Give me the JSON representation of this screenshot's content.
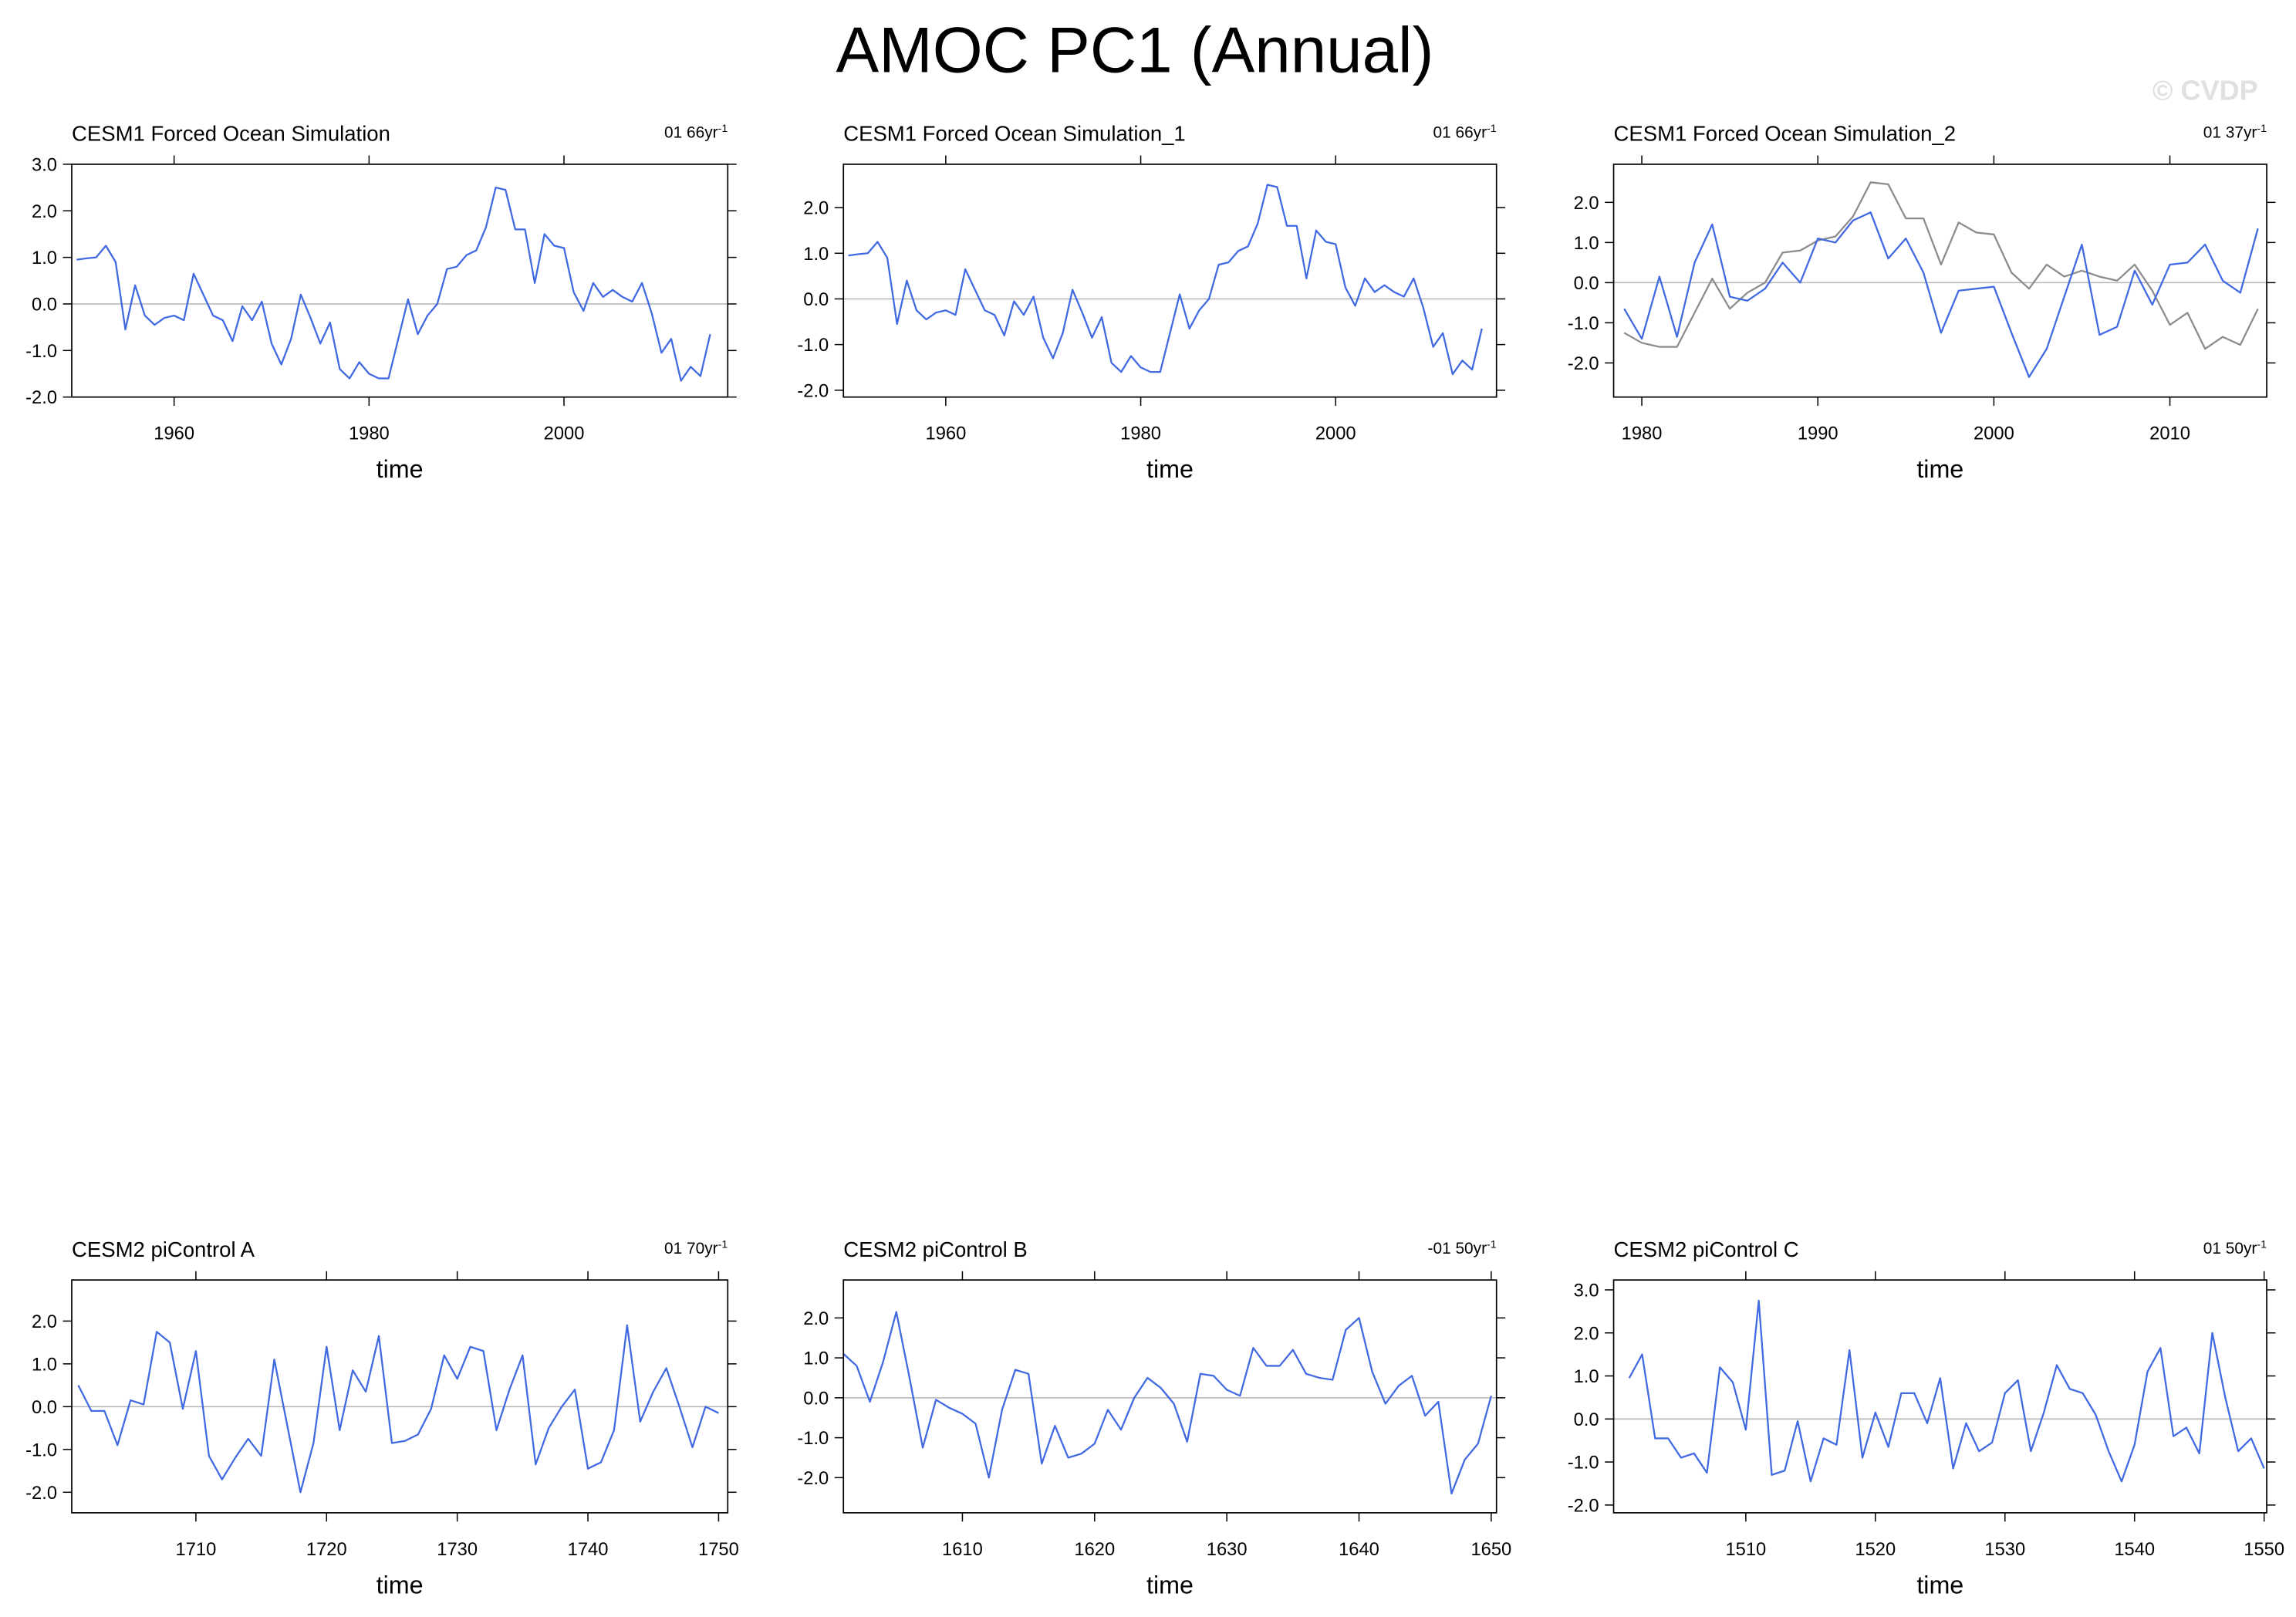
{
  "title": "AMOC PC1 (Annual)",
  "watermark": "© CVDP",
  "chart_data": [
    {
      "type": "line",
      "title": "CESM1 Forced Ocean Simulation",
      "trend_label": "01 66yr",
      "trend_exponent": "-1",
      "xlabel": "time",
      "x": [
        1950,
        1951,
        1952,
        1953,
        1954,
        1955,
        1956,
        1957,
        1958,
        1959,
        1960,
        1961,
        1962,
        1963,
        1964,
        1965,
        1966,
        1967,
        1968,
        1969,
        1970,
        1971,
        1972,
        1973,
        1974,
        1975,
        1976,
        1977,
        1978,
        1979,
        1980,
        1981,
        1982,
        1983,
        1984,
        1985,
        1986,
        1987,
        1988,
        1989,
        1990,
        1991,
        1992,
        1993,
        1994,
        1995,
        1996,
        1997,
        1998,
        1999,
        2000,
        2001,
        2002,
        2003,
        2004,
        2005,
        2006,
        2007,
        2008,
        2009,
        2010,
        2011,
        2012,
        2013,
        2014,
        2015
      ],
      "series": [
        {
          "color": "#4169e1",
          "values": [
            0.95,
            0.98,
            1.0,
            1.25,
            0.9,
            -0.55,
            0.4,
            -0.25,
            -0.45,
            -0.3,
            -0.25,
            -0.35,
            0.65,
            0.2,
            -0.25,
            -0.35,
            -0.8,
            -0.05,
            -0.35,
            0.05,
            -0.85,
            -1.3,
            -0.75,
            0.2,
            -0.3,
            -0.85,
            -0.4,
            -1.4,
            -1.6,
            -1.25,
            -1.5,
            -1.6,
            -1.6,
            -0.75,
            0.1,
            -0.65,
            -0.25,
            0.0,
            0.75,
            0.8,
            1.05,
            1.15,
            1.65,
            2.5,
            2.45,
            1.6,
            1.6,
            0.45,
            1.5,
            1.25,
            1.2,
            0.25,
            -0.15,
            0.45,
            0.15,
            0.3,
            0.15,
            0.05,
            0.45,
            -0.2,
            -1.05,
            -0.75,
            -1.65,
            -1.35,
            -1.55,
            -0.65
          ]
        }
      ],
      "xlim": [
        1949.5,
        2016.8
      ],
      "ylim": [
        -2,
        3
      ],
      "xticks": [
        1960,
        1980,
        2000
      ],
      "yticks": [
        {
          "value": -2,
          "label": "-2.0"
        },
        {
          "value": -1,
          "label": "-1.0"
        },
        {
          "value": 0,
          "label": "0.0"
        },
        {
          "value": 1,
          "label": "1.0"
        },
        {
          "value": 2,
          "label": "2.0"
        },
        {
          "value": 3,
          "label": "3.0"
        }
      ],
      "zero_line": true
    },
    {
      "type": "line",
      "title": "CESM1 Forced Ocean Simulation_1",
      "trend_label": "01 66yr",
      "trend_exponent": "-1",
      "xlabel": "time",
      "x": [
        1950,
        1951,
        1952,
        1953,
        1954,
        1955,
        1956,
        1957,
        1958,
        1959,
        1960,
        1961,
        1962,
        1963,
        1964,
        1965,
        1966,
        1967,
        1968,
        1969,
        1970,
        1971,
        1972,
        1973,
        1974,
        1975,
        1976,
        1977,
        1978,
        1979,
        1980,
        1981,
        1982,
        1983,
        1984,
        1985,
        1986,
        1987,
        1988,
        1989,
        1990,
        1991,
        1992,
        1993,
        1994,
        1995,
        1996,
        1997,
        1998,
        1999,
        2000,
        2001,
        2002,
        2003,
        2004,
        2005,
        2006,
        2007,
        2008,
        2009,
        2010,
        2011,
        2012,
        2013,
        2014,
        2015
      ],
      "series": [
        {
          "color": "#4169e1",
          "values": [
            0.95,
            0.98,
            1.0,
            1.25,
            0.9,
            -0.55,
            0.4,
            -0.25,
            -0.45,
            -0.3,
            -0.25,
            -0.35,
            0.65,
            0.2,
            -0.25,
            -0.35,
            -0.8,
            -0.05,
            -0.35,
            0.05,
            -0.85,
            -1.3,
            -0.75,
            0.2,
            -0.3,
            -0.85,
            -0.4,
            -1.4,
            -1.6,
            -1.25,
            -1.5,
            -1.6,
            -1.6,
            -0.75,
            0.1,
            -0.65,
            -0.25,
            0.0,
            0.75,
            0.8,
            1.05,
            1.15,
            1.65,
            2.5,
            2.45,
            1.6,
            1.6,
            0.45,
            1.5,
            1.25,
            1.2,
            0.25,
            -0.15,
            0.45,
            0.15,
            0.3,
            0.15,
            0.05,
            0.45,
            -0.2,
            -1.05,
            -0.75,
            -1.65,
            -1.35,
            -1.55,
            -0.65
          ]
        }
      ],
      "xlim": [
        1949.5,
        2016.5
      ],
      "ylim": [
        -2.15,
        2.95
      ],
      "xticks": [
        1960,
        1980,
        2000
      ],
      "yticks": [
        {
          "value": -2,
          "label": "-2.0"
        },
        {
          "value": -1,
          "label": "-1.0"
        },
        {
          "value": 0,
          "label": "0.0"
        },
        {
          "value": 1,
          "label": "1.0"
        },
        {
          "value": 2,
          "label": "2.0"
        }
      ],
      "zero_line": true
    },
    {
      "type": "line",
      "title": "CESM1 Forced Ocean Simulation_2",
      "trend_label": "01 37yr",
      "trend_exponent": "-1",
      "xlabel": "time",
      "x": [
        1979,
        1980,
        1981,
        1982,
        1983,
        1984,
        1985,
        1986,
        1987,
        1988,
        1989,
        1990,
        1991,
        1992,
        1993,
        1994,
        1995,
        1996,
        1997,
        1998,
        1999,
        2000,
        2001,
        2002,
        2003,
        2004,
        2005,
        2006,
        2007,
        2008,
        2009,
        2010,
        2011,
        2012,
        2013,
        2014,
        2015
      ],
      "series": [
        {
          "color": "#8c8c8c",
          "values": [
            -1.25,
            -1.5,
            -1.6,
            -1.6,
            -0.75,
            0.1,
            -0.65,
            -0.25,
            0.0,
            0.75,
            0.8,
            1.05,
            1.15,
            1.65,
            2.5,
            2.45,
            1.6,
            1.6,
            0.45,
            1.5,
            1.25,
            1.2,
            0.25,
            -0.15,
            0.45,
            0.15,
            0.3,
            0.15,
            0.05,
            0.45,
            -0.2,
            -1.05,
            -0.75,
            -1.65,
            -1.35,
            -1.55,
            -0.65
          ]
        },
        {
          "color": "#4169e1",
          "values": [
            -0.65,
            -1.4,
            0.15,
            -1.35,
            0.5,
            1.45,
            -0.35,
            -0.45,
            -0.15,
            0.5,
            0.0,
            1.1,
            1.0,
            1.55,
            1.75,
            0.6,
            1.1,
            0.25,
            -1.25,
            -0.2,
            -0.15,
            -0.1,
            -1.25,
            -2.35,
            -1.65,
            -0.35,
            0.95,
            -1.3,
            -1.1,
            0.3,
            -0.55,
            0.45,
            0.5,
            0.95,
            0.05,
            -0.25,
            1.35
          ]
        }
      ],
      "xlim": [
        1978.4,
        2015.5
      ],
      "ylim": [
        -2.85,
        2.95
      ],
      "xticks": [
        1980,
        1990,
        2000,
        2010
      ],
      "yticks": [
        {
          "value": -2,
          "label": "-2.0"
        },
        {
          "value": -1,
          "label": "-1.0"
        },
        {
          "value": 0,
          "label": "0.0"
        },
        {
          "value": 1,
          "label": "1.0"
        },
        {
          "value": 2,
          "label": "2.0"
        }
      ],
      "zero_line": true
    },
    {
      "type": "line",
      "title": "CESM2 piControl A",
      "trend_label": "01 70yr",
      "trend_exponent": "-1",
      "xlabel": "time",
      "x": [
        1701,
        1702,
        1703,
        1704,
        1705,
        1706,
        1707,
        1708,
        1709,
        1710,
        1711,
        1712,
        1713,
        1714,
        1715,
        1716,
        1717,
        1718,
        1719,
        1720,
        1721,
        1722,
        1723,
        1724,
        1725,
        1726,
        1727,
        1728,
        1729,
        1730,
        1731,
        1732,
        1733,
        1734,
        1735,
        1736,
        1737,
        1738,
        1739,
        1740,
        1741,
        1742,
        1743,
        1744,
        1745,
        1746,
        1747,
        1748,
        1749,
        1750
      ],
      "series": [
        {
          "color": "#4169e1",
          "values": [
            0.5,
            -0.1,
            -0.1,
            -0.9,
            0.15,
            0.05,
            1.75,
            1.5,
            -0.05,
            1.3,
            -1.15,
            -1.7,
            -1.2,
            -0.75,
            -1.15,
            1.1,
            -0.45,
            -2.0,
            -0.85,
            1.4,
            -0.55,
            0.85,
            0.35,
            1.65,
            -0.85,
            -0.8,
            -0.65,
            -0.05,
            1.2,
            0.65,
            1.4,
            1.3,
            -0.55,
            0.4,
            1.2,
            -1.35,
            -0.5,
            0.0,
            0.4,
            -1.45,
            -1.3,
            -0.55,
            1.9,
            -0.35,
            0.35,
            0.9,
            0.0,
            -0.95,
            0.0,
            -0.15
          ]
        }
      ],
      "xlim": [
        1700.5,
        1750.7
      ],
      "ylim": [
        -2.48,
        2.96
      ],
      "xticks": [
        1710,
        1720,
        1730,
        1740,
        1750
      ],
      "yticks": [
        {
          "value": -2,
          "label": "-2.0"
        },
        {
          "value": -1,
          "label": "-1.0"
        },
        {
          "value": 0,
          "label": "0.0"
        },
        {
          "value": 1,
          "label": "1.0"
        },
        {
          "value": 2,
          "label": "2.0"
        }
      ],
      "zero_line": true
    },
    {
      "type": "line",
      "title": "CESM2 piControl B",
      "trend_label": "-01 50yr",
      "trend_exponent": "-1",
      "xlabel": "time",
      "x": [
        1601,
        1602,
        1603,
        1604,
        1605,
        1606,
        1607,
        1608,
        1609,
        1610,
        1611,
        1612,
        1613,
        1614,
        1615,
        1616,
        1617,
        1618,
        1619,
        1620,
        1621,
        1622,
        1623,
        1624,
        1625,
        1626,
        1627,
        1628,
        1629,
        1630,
        1631,
        1632,
        1633,
        1634,
        1635,
        1636,
        1637,
        1638,
        1639,
        1640,
        1641,
        1642,
        1643,
        1644,
        1645,
        1646,
        1647,
        1648,
        1649,
        1650
      ],
      "series": [
        {
          "color": "#4169e1",
          "values": [
            1.1,
            0.8,
            -0.1,
            0.9,
            2.15,
            0.5,
            -1.25,
            -0.05,
            -0.25,
            -0.4,
            -0.65,
            -2.0,
            -0.3,
            0.7,
            0.6,
            -1.65,
            -0.7,
            -1.5,
            -1.4,
            -1.15,
            -0.3,
            -0.8,
            0.0,
            0.5,
            0.25,
            -0.15,
            -1.1,
            0.6,
            0.55,
            0.2,
            0.05,
            1.25,
            0.8,
            0.8,
            1.2,
            0.6,
            0.5,
            0.45,
            1.7,
            2.0,
            0.65,
            -0.15,
            0.3,
            0.55,
            -0.45,
            -0.1,
            -2.4,
            -1.55,
            -1.15,
            0.05
          ]
        }
      ],
      "xlim": [
        1601.0,
        1650.4
      ],
      "ylim": [
        -2.88,
        2.95
      ],
      "xticks": [
        1610,
        1620,
        1630,
        1640,
        1650
      ],
      "yticks": [
        {
          "value": -2,
          "label": "-2.0"
        },
        {
          "value": -1,
          "label": "-1.0"
        },
        {
          "value": 0,
          "label": "0.0"
        },
        {
          "value": 1,
          "label": "1.0"
        },
        {
          "value": 2,
          "label": "2.0"
        }
      ],
      "zero_line": true
    },
    {
      "type": "line",
      "title": "CESM2 piControl C",
      "trend_label": "01 50yr",
      "trend_exponent": "-1",
      "xlabel": "time",
      "x": [
        1501,
        1502,
        1503,
        1504,
        1505,
        1506,
        1507,
        1508,
        1509,
        1510,
        1511,
        1512,
        1513,
        1514,
        1515,
        1516,
        1517,
        1518,
        1519,
        1520,
        1521,
        1522,
        1523,
        1524,
        1525,
        1526,
        1527,
        1528,
        1529,
        1530,
        1531,
        1532,
        1533,
        1534,
        1535,
        1536,
        1537,
        1538,
        1539,
        1540,
        1541,
        1542,
        1543,
        1544,
        1545,
        1546,
        1547,
        1548,
        1549,
        1550
      ],
      "series": [
        {
          "color": "#4169e1",
          "values": [
            0.95,
            1.5,
            -0.45,
            -0.45,
            -0.9,
            -0.8,
            -1.25,
            1.2,
            0.85,
            -0.25,
            2.75,
            -1.3,
            -1.2,
            -0.05,
            -1.45,
            -0.45,
            -0.6,
            1.6,
            -0.9,
            0.15,
            -0.65,
            0.6,
            0.6,
            -0.1,
            0.95,
            -1.15,
            -0.1,
            -0.75,
            -0.55,
            0.6,
            0.9,
            -0.75,
            0.15,
            1.25,
            0.7,
            0.6,
            0.1,
            -0.75,
            -1.45,
            -0.6,
            1.1,
            1.65,
            -0.4,
            -0.2,
            -0.8,
            2.0,
            0.5,
            -0.75,
            -0.45,
            -1.15
          ]
        }
      ],
      "xlim": [
        1499.8,
        1550.2
      ],
      "ylim": [
        -2.18,
        3.23
      ],
      "xticks": [
        1510,
        1520,
        1530,
        1540,
        1550
      ],
      "yticks": [
        {
          "value": -2,
          "label": "-2.0"
        },
        {
          "value": -1,
          "label": "-1.0"
        },
        {
          "value": 0,
          "label": "0.0"
        },
        {
          "value": 1,
          "label": "1.0"
        },
        {
          "value": 2,
          "label": "2.0"
        },
        {
          "value": 3,
          "label": "3.0"
        }
      ],
      "zero_line": true
    }
  ]
}
